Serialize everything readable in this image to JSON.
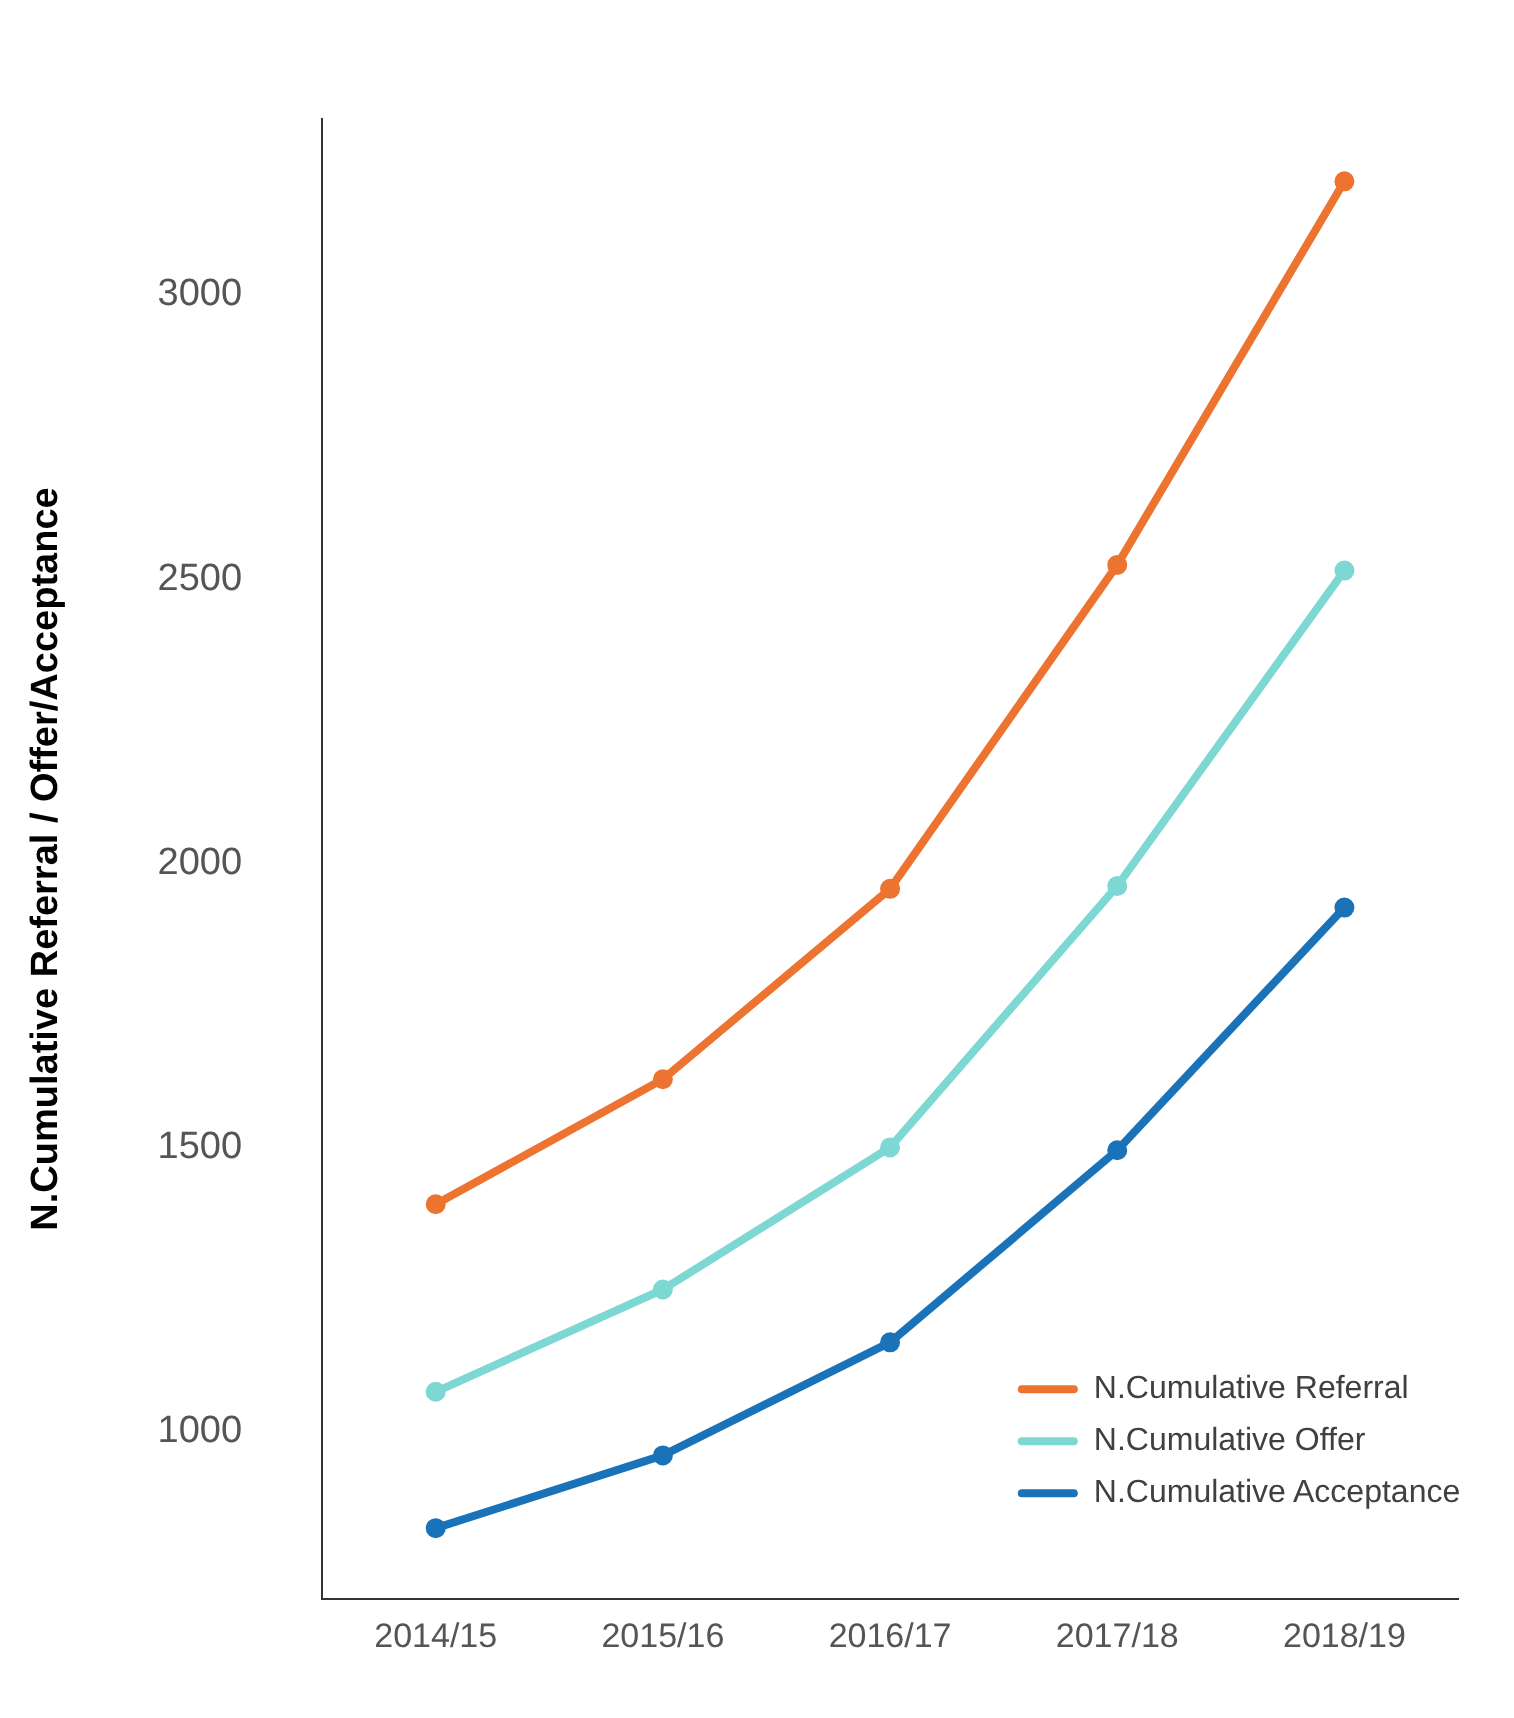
{
  "chart_data": {
    "type": "line",
    "ylabel": "N.Cumulative Referral / Offer/Acceptance",
    "categories": [
      "2014/15",
      "2015/16",
      "2016/17",
      "2017/18",
      "2018/19"
    ],
    "series": [
      {
        "name": "N.Cumulative Referral",
        "color": "#ed7430",
        "values": [
          1400,
          1620,
          1955,
          2525,
          3200
        ]
      },
      {
        "name": "N.Cumulative Offer",
        "color": "#7dd8d3",
        "values": [
          1070,
          1250,
          1500,
          1960,
          2515
        ]
      },
      {
        "name": "N.Cumulative Acceptance",
        "color": "#1a72b8",
        "values": [
          830,
          958,
          1157,
          1495,
          1922
        ]
      }
    ],
    "ylim": [
      705,
      3310
    ],
    "yticks": [
      1000,
      1500,
      2000,
      2500,
      3000
    ],
    "grid": false,
    "legend": "bottom right",
    "marker": "circle",
    "line_style": "solid"
  }
}
